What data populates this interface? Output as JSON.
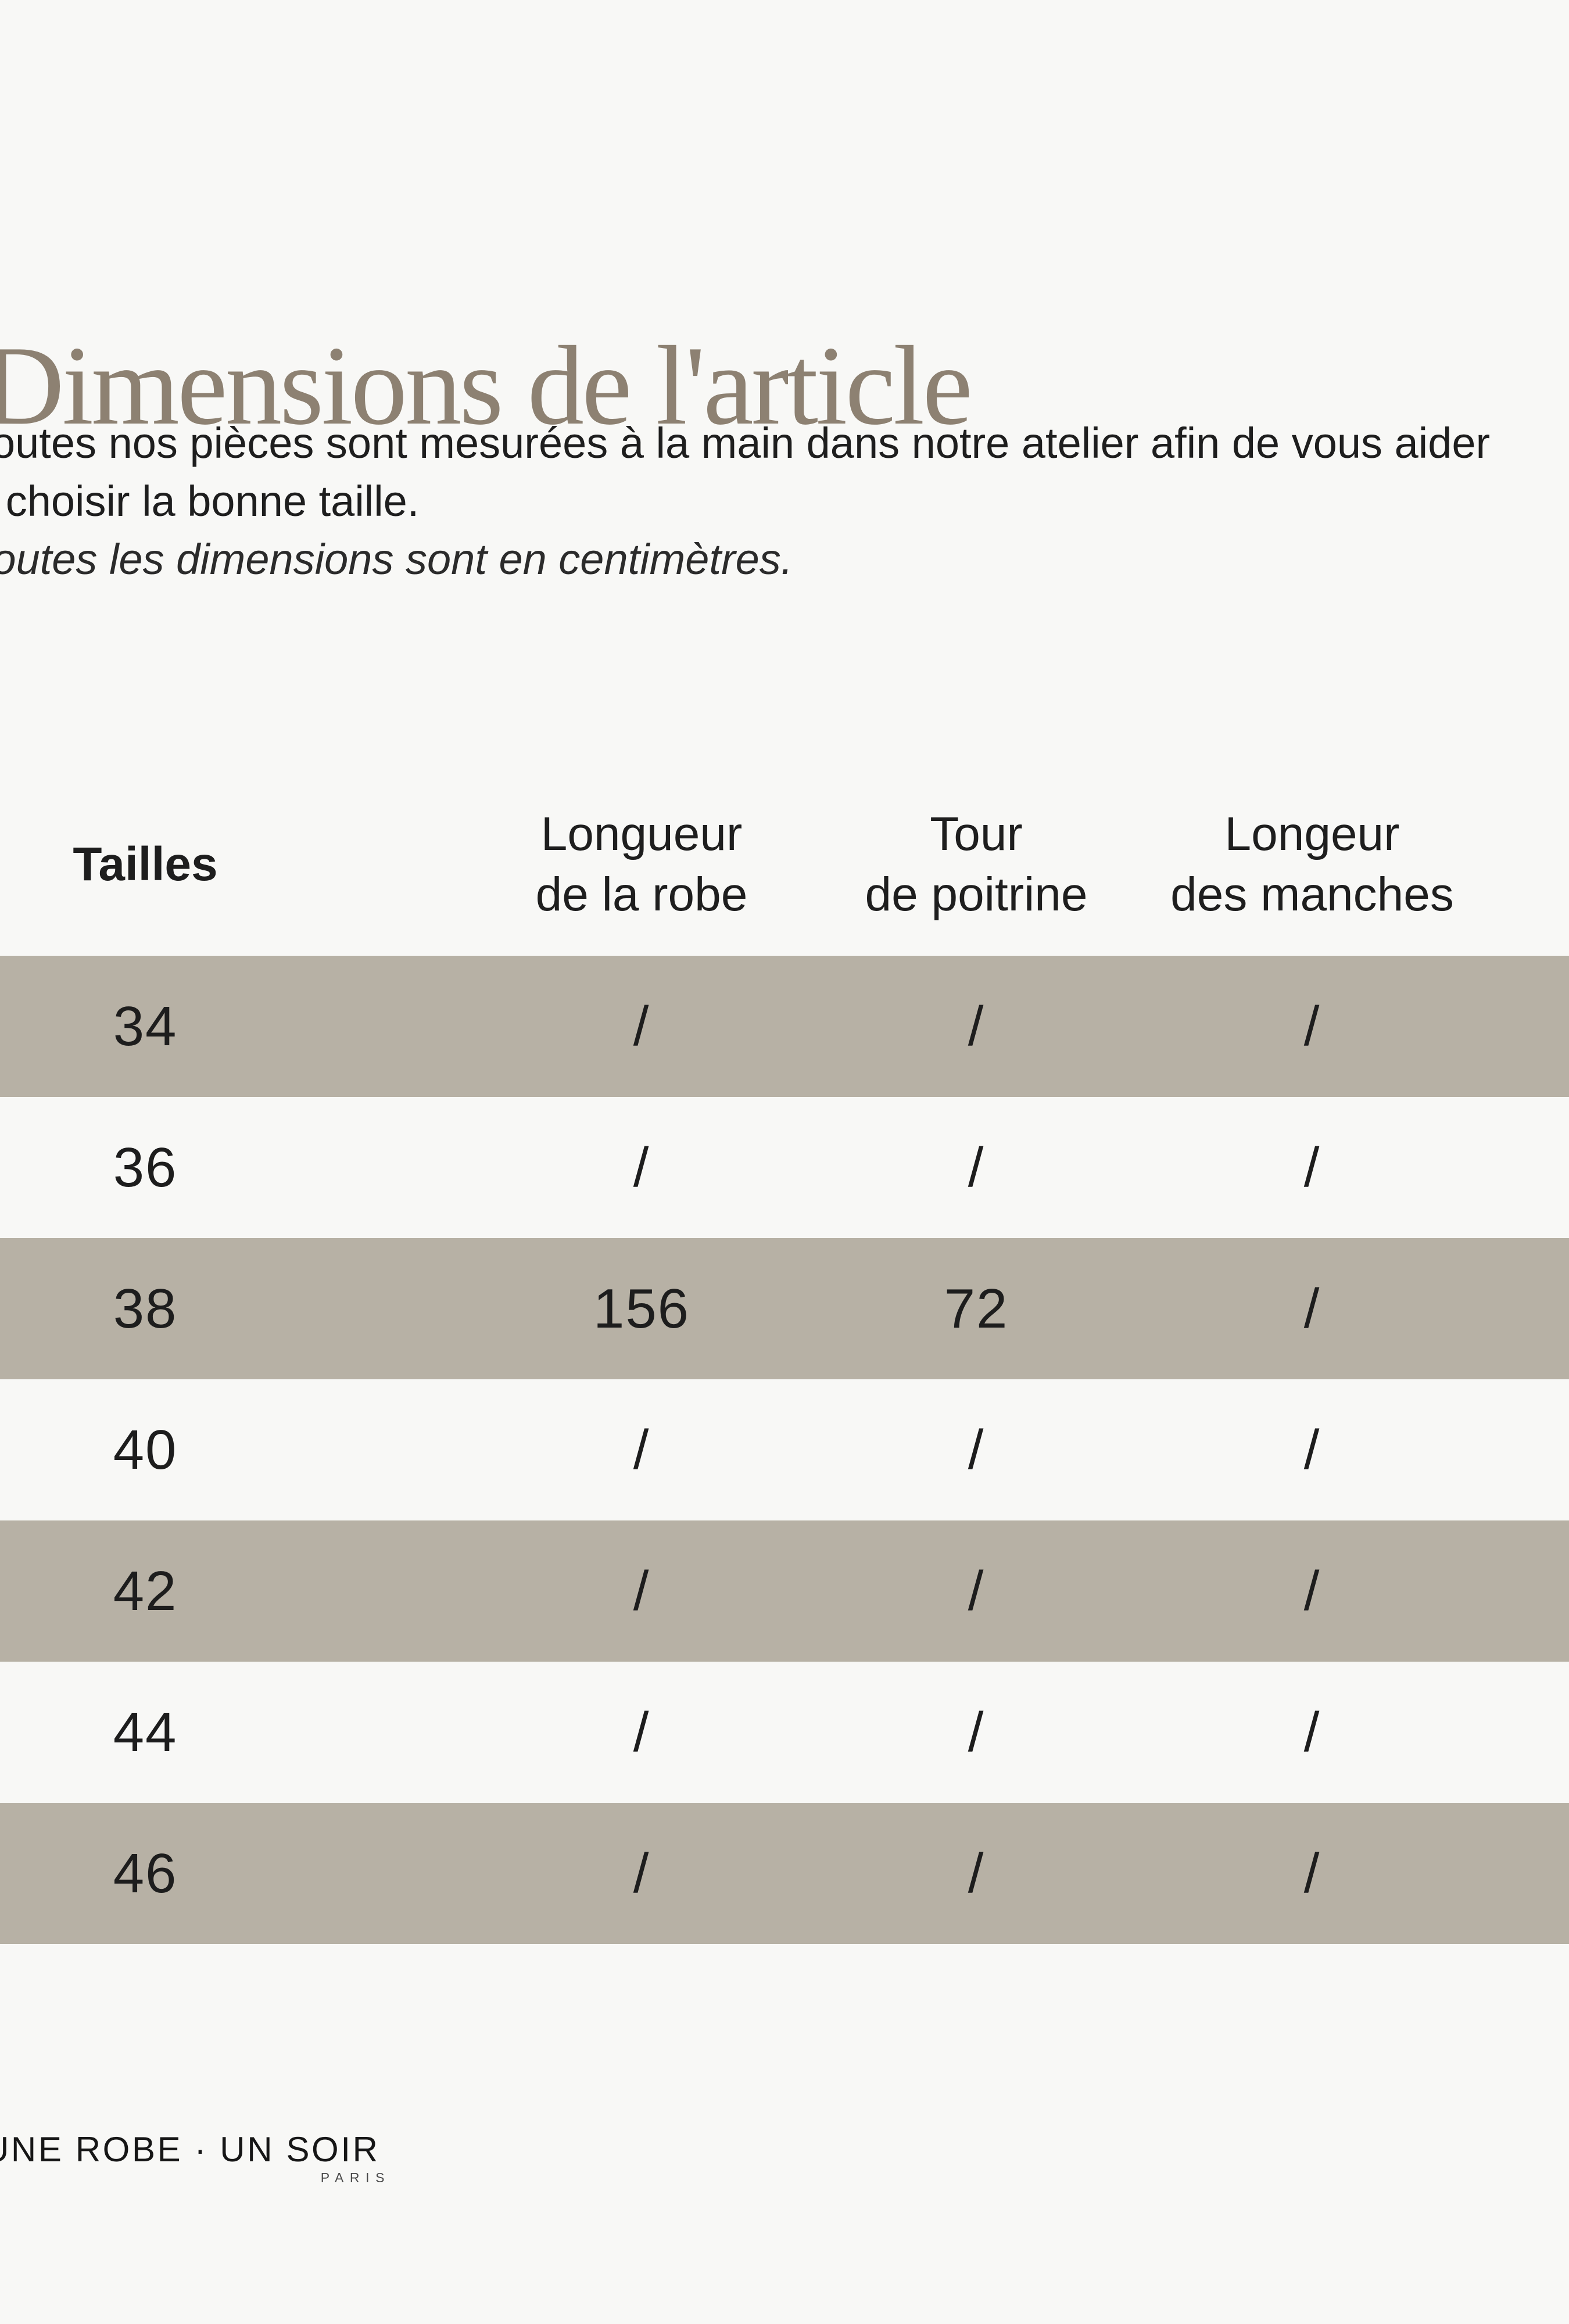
{
  "page": {
    "background_color": "#f8f8f6"
  },
  "header": {
    "title": "Dimensions de l'article",
    "title_color": "#8d8172"
  },
  "intro": {
    "line1": "Toutes nos pièces sont mesurées à la main dans notre atelier afin de vous aider",
    "line2": "à choisir la bonne taille.",
    "line3_italic": "Toutes les dimensions sont en centimètres."
  },
  "size_table": {
    "stripe_color": "#b7b1a5",
    "columns": [
      {
        "label": "Tailles",
        "label2": ""
      },
      {
        "label": "Longueur",
        "label2": "de la robe"
      },
      {
        "label": "Tour",
        "label2": "de poitrine"
      },
      {
        "label": "Longeur",
        "label2": "des manches"
      }
    ],
    "rows": [
      {
        "size": "34",
        "dress_length": "/",
        "bust": "/",
        "sleeve_length": "/"
      },
      {
        "size": "36",
        "dress_length": "/",
        "bust": "/",
        "sleeve_length": "/"
      },
      {
        "size": "38",
        "dress_length": "156",
        "bust": "72",
        "sleeve_length": "/"
      },
      {
        "size": "40",
        "dress_length": "/",
        "bust": "/",
        "sleeve_length": "/"
      },
      {
        "size": "42",
        "dress_length": "/",
        "bust": "/",
        "sleeve_length": "/"
      },
      {
        "size": "44",
        "dress_length": "/",
        "bust": "/",
        "sleeve_length": "/"
      },
      {
        "size": "46",
        "dress_length": "/",
        "bust": "/",
        "sleeve_length": "/"
      }
    ]
  },
  "footer": {
    "brand": "UNE ROBE · UN SOIR",
    "brand_city": "PARIS"
  }
}
